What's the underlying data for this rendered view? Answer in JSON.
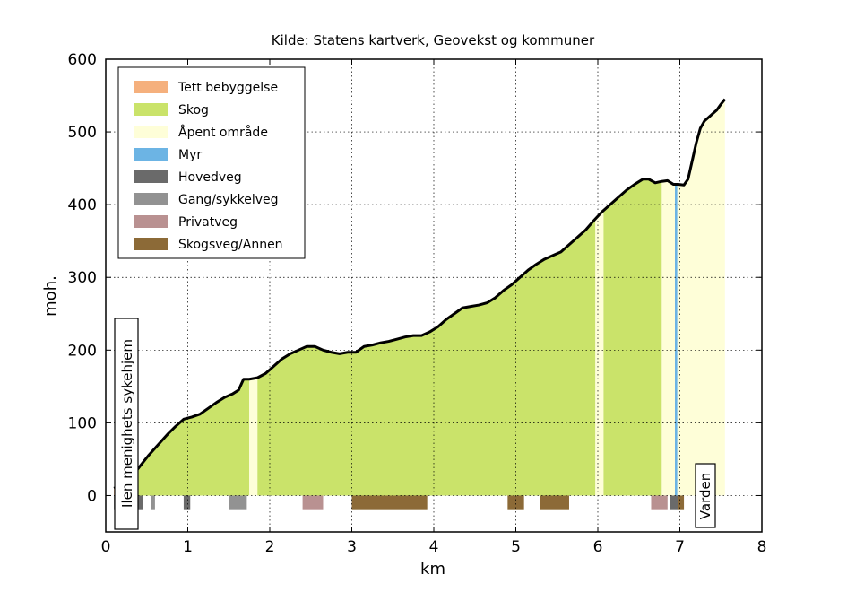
{
  "chart_data": {
    "type": "area",
    "title": "Kilde: Statens kartverk, Geovekst og kommuner",
    "xlabel": "km",
    "ylabel": "moh.",
    "xlim": [
      0,
      8
    ],
    "ylim": [
      -50,
      600
    ],
    "xticks": [
      "0",
      "1",
      "2",
      "3",
      "4",
      "5",
      "6",
      "7",
      "8"
    ],
    "yticks": [
      "0",
      "100",
      "200",
      "300",
      "400",
      "500",
      "600"
    ],
    "grid": true,
    "legend_position": "top-left",
    "start_label": "Ilen menighets sykehjem",
    "end_label": "Varden",
    "colors": {
      "tett_bebyggelse": "#f5b07d",
      "skog": "#cae36a",
      "apent_omrade": "#fefed8",
      "myr": "#6cb4e4",
      "hovedveg": "#6a6a6a",
      "gang_sykkelveg": "#929292",
      "privatveg": "#b99191",
      "skogsveg_annen": "#8c6a37"
    },
    "legend": [
      {
        "label": "Tett bebyggelse",
        "key": "tett_bebyggelse"
      },
      {
        "label": "Skog",
        "key": "skog"
      },
      {
        "label": "Åpent område",
        "key": "apent_omrade"
      },
      {
        "label": "Myr",
        "key": "myr"
      },
      {
        "label": "Hovedveg",
        "key": "hovedveg"
      },
      {
        "label": "Gang/sykkelveg",
        "key": "gang_sykkelveg"
      },
      {
        "label": "Privatveg",
        "key": "privatveg"
      },
      {
        "label": "Skogsveg/Annen",
        "key": "skogsveg_annen"
      }
    ],
    "elevation_profile": {
      "x": [
        0.1,
        0.2,
        0.3,
        0.38,
        0.45,
        0.52,
        0.6,
        0.68,
        0.76,
        0.85,
        0.95,
        1.05,
        1.15,
        1.25,
        1.35,
        1.45,
        1.55,
        1.62,
        1.68,
        1.75,
        1.85,
        1.95,
        2.05,
        2.15,
        2.25,
        2.35,
        2.45,
        2.55,
        2.65,
        2.75,
        2.85,
        2.95,
        3.05,
        3.15,
        3.25,
        3.35,
        3.45,
        3.55,
        3.65,
        3.75,
        3.85,
        3.95,
        4.05,
        4.15,
        4.25,
        4.35,
        4.45,
        4.55,
        4.65,
        4.75,
        4.85,
        4.95,
        5.05,
        5.15,
        5.25,
        5.35,
        5.45,
        5.55,
        5.65,
        5.75,
        5.85,
        5.95,
        6.05,
        6.15,
        6.25,
        6.35,
        6.45,
        6.55,
        6.62,
        6.7,
        6.78,
        6.85,
        6.92,
        6.98,
        7.05,
        7.1,
        7.15,
        7.2,
        7.25,
        7.3,
        7.35,
        7.4,
        7.45,
        7.5,
        7.55
      ],
      "y": [
        10,
        15,
        25,
        35,
        45,
        55,
        65,
        75,
        85,
        95,
        105,
        108,
        112,
        120,
        128,
        135,
        140,
        145,
        160,
        160,
        162,
        168,
        178,
        188,
        195,
        200,
        205,
        205,
        200,
        197,
        195,
        197,
        197,
        205,
        207,
        210,
        212,
        215,
        218,
        220,
        220,
        225,
        232,
        242,
        250,
        258,
        260,
        262,
        265,
        272,
        282,
        290,
        300,
        310,
        318,
        325,
        330,
        335,
        345,
        355,
        365,
        378,
        390,
        400,
        410,
        420,
        428,
        435,
        435,
        430,
        432,
        433,
        428,
        428,
        427,
        435,
        460,
        485,
        505,
        515,
        520,
        525,
        530,
        538,
        545
      ]
    },
    "land_cover_segments": [
      {
        "start": 0.1,
        "end": 0.4,
        "type": "tett_bebyggelse"
      },
      {
        "start": 0.4,
        "end": 1.75,
        "type": "skog"
      },
      {
        "start": 1.75,
        "end": 1.85,
        "type": "apent_omrade"
      },
      {
        "start": 1.85,
        "end": 5.97,
        "type": "skog"
      },
      {
        "start": 5.97,
        "end": 6.07,
        "type": "apent_omrade"
      },
      {
        "start": 6.07,
        "end": 6.78,
        "type": "skog"
      },
      {
        "start": 6.78,
        "end": 6.94,
        "type": "apent_omrade"
      },
      {
        "start": 6.94,
        "end": 6.97,
        "type": "myr"
      },
      {
        "start": 6.97,
        "end": 7.55,
        "type": "apent_omrade"
      }
    ],
    "road_segments": [
      {
        "start": 0.1,
        "end": 0.16,
        "type": "hovedveg"
      },
      {
        "start": 0.38,
        "end": 0.45,
        "type": "hovedveg"
      },
      {
        "start": 0.55,
        "end": 0.6,
        "type": "gang_sykkelveg"
      },
      {
        "start": 0.95,
        "end": 1.03,
        "type": "hovedveg"
      },
      {
        "start": 1.5,
        "end": 1.72,
        "type": "gang_sykkelveg"
      },
      {
        "start": 2.4,
        "end": 2.65,
        "type": "privatveg"
      },
      {
        "start": 3.0,
        "end": 3.92,
        "type": "skogsveg_annen"
      },
      {
        "start": 4.9,
        "end": 5.1,
        "type": "skogsveg_annen"
      },
      {
        "start": 5.3,
        "end": 5.4,
        "type": "skogsveg_annen"
      },
      {
        "start": 5.4,
        "end": 5.65,
        "type": "skogsveg_annen"
      },
      {
        "start": 6.65,
        "end": 6.85,
        "type": "privatveg"
      },
      {
        "start": 6.88,
        "end": 6.98,
        "type": "hovedveg"
      },
      {
        "start": 6.98,
        "end": 7.05,
        "type": "skogsveg_annen"
      }
    ],
    "road_band_y": [
      -20,
      0
    ]
  }
}
